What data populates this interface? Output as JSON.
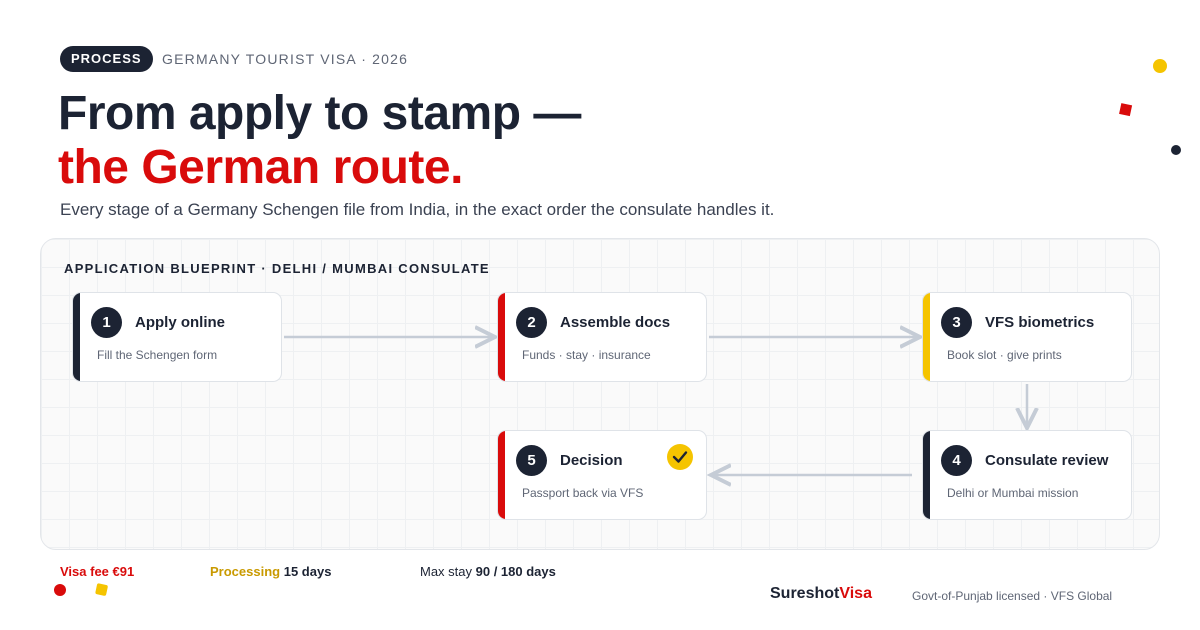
{
  "header": {
    "tag": "PROCESS",
    "kicker": "GERMANY TOURIST VISA · 2026",
    "title_line1": "From apply to stamp —",
    "title_line2": "the German route.",
    "subtitle": "Every stage of a Germany Schengen file from India, in the exact order the consulate handles it."
  },
  "blueprint": {
    "label": "APPLICATION BLUEPRINT · DELHI / MUMBAI CONSULATE"
  },
  "nodes": [
    {
      "number": 1,
      "title": "Apply online",
      "detail": "Fill the Schengen form"
    },
    {
      "number": 2,
      "title": "Assemble docs",
      "detail": "Funds · stay · insurance"
    },
    {
      "number": 3,
      "title": "VFS biometrics",
      "detail": "Book slot · give prints"
    },
    {
      "number": 4,
      "title": "Consulate review",
      "detail": "Delhi or Mumbai mission"
    },
    {
      "number": 5,
      "title": "Decision",
      "detail": "Passport back via VFS"
    }
  ],
  "facts": [
    {
      "label": "Visa fee",
      "value": "€91"
    },
    {
      "label": "Processing",
      "value": "15 days"
    },
    {
      "label": "Max stay",
      "value": "90 / 180 days"
    }
  ],
  "footer": {
    "brand_a": "Sureshot",
    "brand_b": "Visa",
    "note": "Govt-of-Punjab licensed · VFS Global"
  }
}
